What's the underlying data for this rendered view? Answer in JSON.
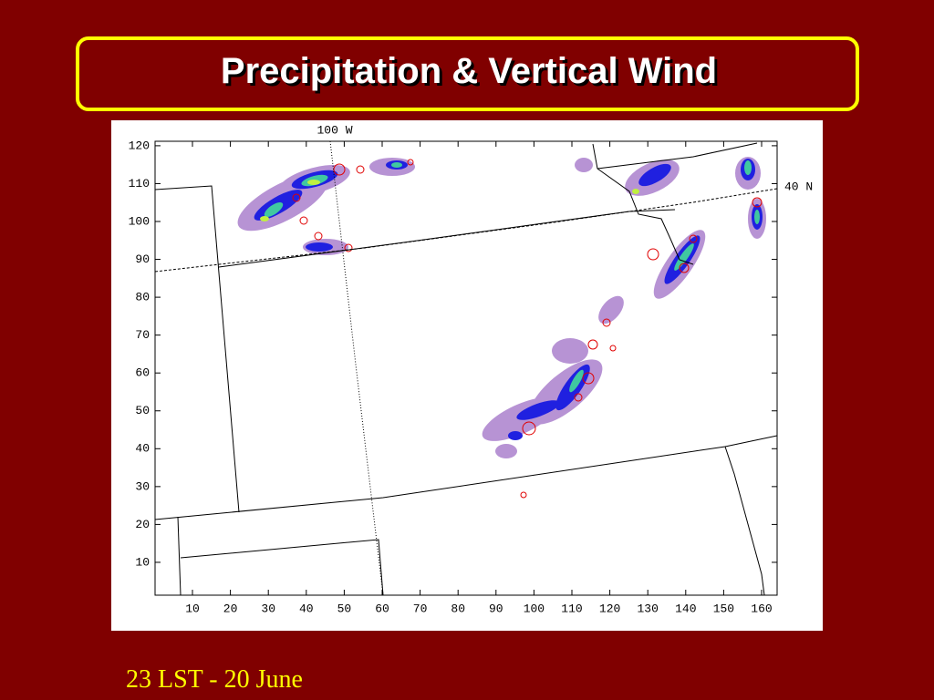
{
  "header": {
    "title": "Precipitation & Vertical Wind"
  },
  "figure": {
    "top_label": "100 W",
    "right_label": "40 N",
    "x_ticks": [
      10,
      20,
      30,
      40,
      50,
      60,
      70,
      80,
      90,
      100,
      110,
      120,
      130,
      140,
      150,
      160
    ],
    "y_ticks": [
      10,
      20,
      30,
      40,
      50,
      60,
      70,
      80,
      90,
      100,
      110,
      120
    ]
  },
  "footer": {
    "caption": "23 LST - 20 June"
  }
}
